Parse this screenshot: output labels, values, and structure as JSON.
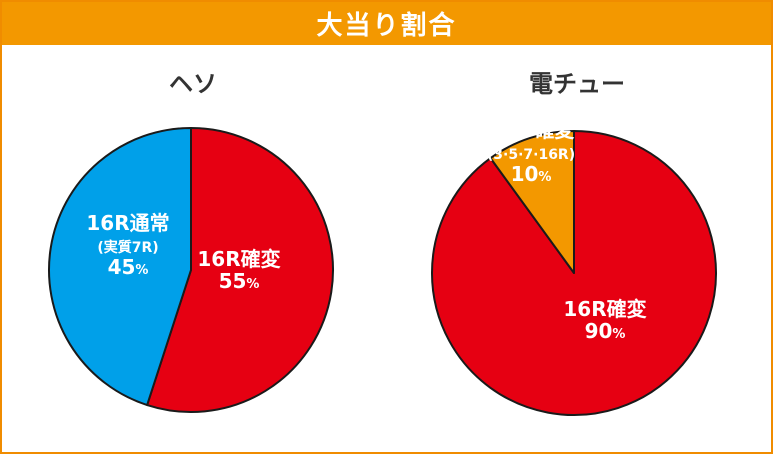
{
  "header": {
    "title": "大当り割合"
  },
  "chart_data": [
    {
      "type": "pie",
      "title": "ヘソ",
      "slices": [
        {
          "label": "16R確変",
          "sublabel": "",
          "value": 55,
          "value_text": "55",
          "unit": "%",
          "color": "#e60012"
        },
        {
          "label": "16R通常",
          "sublabel": "(実質7R)",
          "value": 45,
          "value_text": "45",
          "unit": "%",
          "color": "#00a0e9"
        }
      ]
    },
    {
      "type": "pie",
      "title": "電チュー",
      "slices": [
        {
          "label": "16R確変",
          "sublabel": "",
          "value": 90,
          "value_text": "90",
          "unit": "%",
          "color": "#e60012"
        },
        {
          "label": "RUB確変",
          "sublabel": "(3·5·7·16R)",
          "value": 10,
          "value_text": "10",
          "unit": "%",
          "color": "#f39800"
        }
      ]
    }
  ]
}
